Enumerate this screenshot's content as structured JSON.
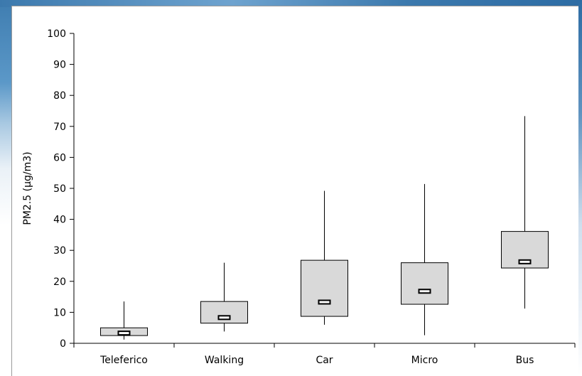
{
  "chart_data": {
    "type": "box",
    "title": "",
    "xlabel": "",
    "ylabel": "PM2.5 (µg/m3)",
    "ylim": [
      0,
      100
    ],
    "yticks": [
      0,
      10,
      20,
      30,
      40,
      50,
      60,
      70,
      80,
      90,
      100
    ],
    "categories": [
      "Teleferico",
      "Walking",
      "Car",
      "Micro",
      "Bus"
    ],
    "boxes": [
      {
        "category": "Teleferico",
        "whisker_low": 1.2,
        "q1": 2.5,
        "median": 3.3,
        "q3": 5.0,
        "whisker_high": 13.5
      },
      {
        "category": "Walking",
        "whisker_low": 3.8,
        "q1": 6.5,
        "median": 8.3,
        "q3": 13.5,
        "whisker_high": 26.0
      },
      {
        "category": "Car",
        "whisker_low": 6.0,
        "q1": 8.7,
        "median": 13.3,
        "q3": 26.8,
        "whisker_high": 49.2
      },
      {
        "category": "Micro",
        "whisker_low": 2.6,
        "q1": 12.6,
        "median": 16.8,
        "q3": 26.0,
        "whisker_high": 51.4
      },
      {
        "category": "Bus",
        "whisker_low": 11.2,
        "q1": 24.3,
        "median": 26.3,
        "q3": 36.1,
        "whisker_high": 73.3
      }
    ],
    "colors": {
      "box_fill": "#d9d9d9",
      "line": "#000000"
    },
    "grid": false,
    "legend": "none"
  }
}
